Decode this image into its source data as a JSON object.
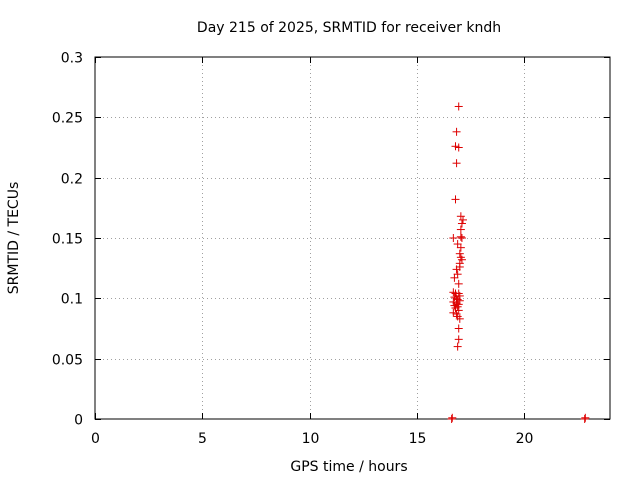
{
  "chart_data": {
    "type": "scatter",
    "title": "Day 215 of 2025, SRMTID for receiver kndh",
    "xlabel": "GPS time / hours",
    "ylabel": "SRMTID / TECUs",
    "xlim": [
      0,
      24
    ],
    "ylim": [
      0,
      0.3
    ],
    "x_ticks": [
      0,
      5,
      10,
      15,
      20
    ],
    "x_tick_labels": [
      "0",
      "5",
      "10",
      "15",
      "20"
    ],
    "y_ticks": [
      0,
      0.05,
      0.1,
      0.15,
      0.2,
      0.25,
      0.3
    ],
    "y_tick_labels": [
      "0",
      "0.05",
      "0.1",
      "0.15",
      "0.2",
      "0.25",
      "0.3"
    ],
    "grid": true,
    "marker": "+",
    "series": [
      {
        "color": "#dd0000",
        "points": [
          [
            16.95,
            0.259
          ],
          [
            16.85,
            0.238
          ],
          [
            16.8,
            0.226
          ],
          [
            16.95,
            0.225
          ],
          [
            16.85,
            0.212
          ],
          [
            16.8,
            0.182
          ],
          [
            17.05,
            0.168
          ],
          [
            17.15,
            0.165
          ],
          [
            17.1,
            0.162
          ],
          [
            17.05,
            0.157
          ],
          [
            16.7,
            0.15
          ],
          [
            17.05,
            0.151
          ],
          [
            17.1,
            0.15
          ],
          [
            16.9,
            0.145
          ],
          [
            17.05,
            0.142
          ],
          [
            17.0,
            0.137
          ],
          [
            17.05,
            0.134
          ],
          [
            17.1,
            0.132
          ],
          [
            17.0,
            0.129
          ],
          [
            17.0,
            0.126
          ],
          [
            16.85,
            0.124
          ],
          [
            16.9,
            0.12
          ],
          [
            16.75,
            0.117
          ],
          [
            16.95,
            0.112
          ],
          [
            16.7,
            0.105
          ],
          [
            16.8,
            0.104
          ],
          [
            16.95,
            0.104
          ],
          [
            17.0,
            0.102
          ],
          [
            16.75,
            0.101
          ],
          [
            16.85,
            0.1
          ],
          [
            16.9,
            0.099
          ],
          [
            17.0,
            0.098
          ],
          [
            16.7,
            0.097
          ],
          [
            16.85,
            0.096
          ],
          [
            16.95,
            0.095
          ],
          [
            16.75,
            0.094
          ],
          [
            16.9,
            0.093
          ],
          [
            16.8,
            0.092
          ],
          [
            16.95,
            0.09
          ],
          [
            16.7,
            0.088
          ],
          [
            16.85,
            0.087
          ],
          [
            16.9,
            0.085
          ],
          [
            17.0,
            0.083
          ],
          [
            16.95,
            0.075
          ],
          [
            16.95,
            0.066
          ],
          [
            16.9,
            0.06
          ],
          [
            16.65,
            0.001
          ],
          [
            16.62,
            0.0
          ],
          [
            22.85,
            0.001
          ],
          [
            22.82,
            0.0
          ]
        ]
      }
    ]
  }
}
